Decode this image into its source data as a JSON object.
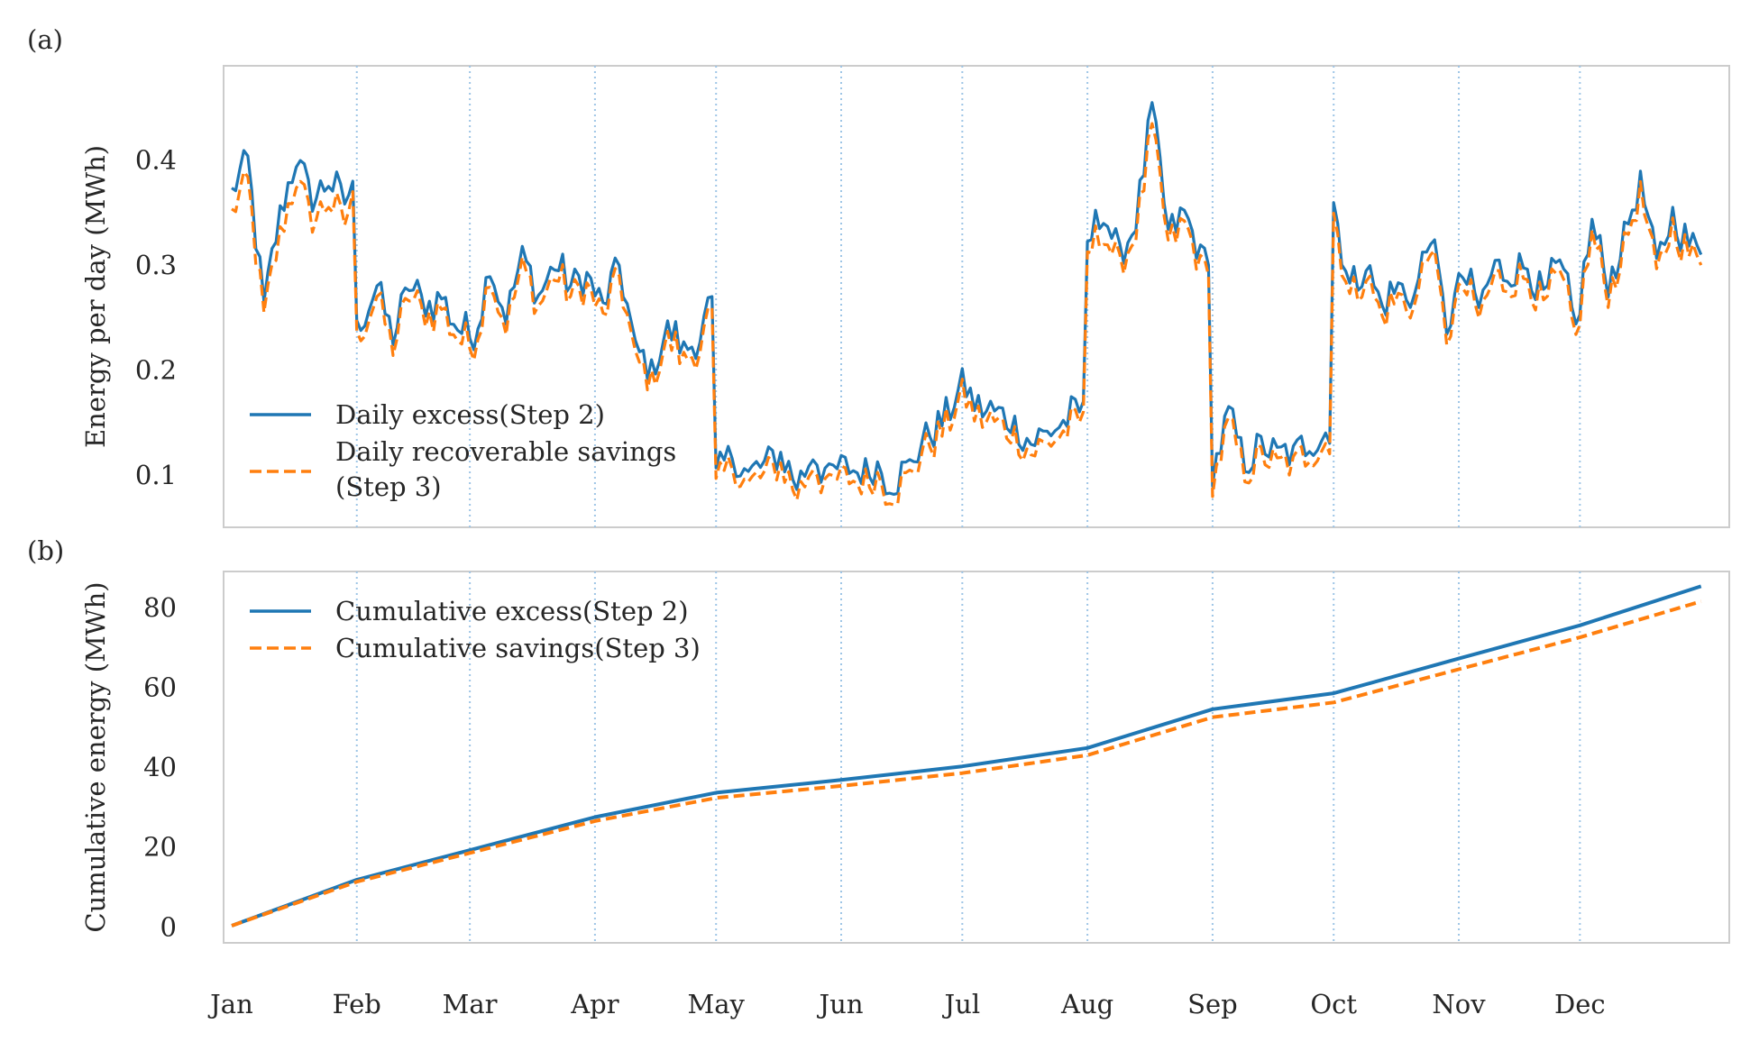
{
  "colors": {
    "excess": "#1f77b4",
    "savings": "#ff7f0e",
    "spine": "#cccccc",
    "month_line": "#9ec5e6"
  },
  "months": [
    "Jan",
    "Feb",
    "Mar",
    "Apr",
    "May",
    "Jun",
    "Jul",
    "Aug",
    "Sep",
    "Oct",
    "Nov",
    "Dec"
  ],
  "panel_a": {
    "label": "(a)",
    "ylabel": "Energy per day (MWh)",
    "yticks": [
      "0.1",
      "0.2",
      "0.3",
      "0.4"
    ],
    "legend": {
      "excess": "Daily excess(Step 2)",
      "savings_line1": "Daily recoverable savings",
      "savings_line2": "(Step 3)"
    }
  },
  "panel_b": {
    "label": "(b)",
    "ylabel": "Cumulative energy (MWh)",
    "yticks": [
      "0",
      "20",
      "40",
      "60",
      "80"
    ],
    "legend": {
      "excess": "Cumulative excess(Step 2)",
      "savings": "Cumulative savings(Step 3)"
    }
  },
  "chart_data": [
    {
      "type": "line",
      "title": "(a)",
      "xlabel": "",
      "ylabel": "Energy per day (MWh)",
      "xlim": [
        -2,
        371
      ],
      "ylim": [
        0.05,
        0.49
      ],
      "month_starts_day": [
        0,
        31,
        59,
        90,
        120,
        151,
        181,
        212,
        243,
        273,
        304,
        334
      ],
      "x": [
        0,
        4,
        8,
        12,
        16,
        20,
        24,
        28,
        30,
        31,
        36,
        40,
        44,
        48,
        52,
        56,
        60,
        64,
        68,
        72,
        76,
        80,
        84,
        88,
        92,
        96,
        100,
        104,
        108,
        112,
        116,
        119,
        120,
        124,
        128,
        132,
        136,
        140,
        144,
        148,
        152,
        156,
        160,
        164,
        168,
        172,
        176,
        180,
        182,
        186,
        190,
        194,
        198,
        202,
        206,
        210,
        211,
        212,
        216,
        220,
        224,
        228,
        232,
        236,
        240,
        242,
        243,
        247,
        251,
        255,
        259,
        263,
        267,
        271,
        272,
        273,
        277,
        281,
        285,
        289,
        293,
        297,
        301,
        305,
        309,
        313,
        317,
        321,
        325,
        329,
        333,
        337,
        341,
        345,
        349,
        353,
        357,
        361,
        364
      ],
      "series": [
        {
          "name": "Daily excess(Step 2)",
          "values": [
            0.37,
            0.4,
            0.26,
            0.35,
            0.4,
            0.36,
            0.38,
            0.36,
            0.38,
            0.24,
            0.28,
            0.23,
            0.28,
            0.26,
            0.27,
            0.24,
            0.23,
            0.3,
            0.25,
            0.31,
            0.27,
            0.3,
            0.28,
            0.29,
            0.26,
            0.3,
            0.22,
            0.2,
            0.24,
            0.22,
            0.23,
            0.27,
            0.1,
            0.12,
            0.1,
            0.11,
            0.12,
            0.09,
            0.12,
            0.1,
            0.11,
            0.1,
            0.11,
            0.09,
            0.11,
            0.14,
            0.15,
            0.18,
            0.18,
            0.16,
            0.16,
            0.15,
            0.13,
            0.14,
            0.15,
            0.16,
            0.17,
            0.32,
            0.35,
            0.31,
            0.34,
            0.45,
            0.33,
            0.35,
            0.31,
            0.3,
            0.1,
            0.16,
            0.11,
            0.13,
            0.12,
            0.12,
            0.13,
            0.14,
            0.13,
            0.36,
            0.28,
            0.3,
            0.26,
            0.28,
            0.27,
            0.33,
            0.24,
            0.29,
            0.26,
            0.3,
            0.29,
            0.3,
            0.27,
            0.3,
            0.24,
            0.34,
            0.28,
            0.33,
            0.38,
            0.3,
            0.35,
            0.32,
            0.31
          ]
        },
        {
          "name": "Daily recoverable savings (Step 3)",
          "values": [
            0.35,
            0.38,
            0.25,
            0.33,
            0.38,
            0.34,
            0.36,
            0.34,
            0.37,
            0.23,
            0.27,
            0.22,
            0.27,
            0.25,
            0.26,
            0.23,
            0.22,
            0.29,
            0.24,
            0.3,
            0.26,
            0.29,
            0.27,
            0.28,
            0.25,
            0.29,
            0.21,
            0.19,
            0.23,
            0.21,
            0.22,
            0.26,
            0.09,
            0.11,
            0.09,
            0.1,
            0.11,
            0.08,
            0.11,
            0.09,
            0.1,
            0.09,
            0.1,
            0.08,
            0.1,
            0.13,
            0.14,
            0.17,
            0.17,
            0.15,
            0.15,
            0.14,
            0.12,
            0.13,
            0.14,
            0.15,
            0.16,
            0.31,
            0.33,
            0.3,
            0.33,
            0.43,
            0.32,
            0.34,
            0.3,
            0.29,
            0.09,
            0.15,
            0.1,
            0.12,
            0.11,
            0.11,
            0.12,
            0.13,
            0.12,
            0.35,
            0.27,
            0.29,
            0.25,
            0.27,
            0.26,
            0.32,
            0.23,
            0.28,
            0.25,
            0.29,
            0.28,
            0.29,
            0.26,
            0.29,
            0.23,
            0.33,
            0.27,
            0.32,
            0.37,
            0.29,
            0.34,
            0.31,
            0.3
          ]
        }
      ]
    },
    {
      "type": "line",
      "title": "(b)",
      "xlabel": "",
      "ylabel": "Cumulative energy (MWh)",
      "xlim": [
        -18,
        376
      ],
      "ylim": [
        -4,
        89
      ],
      "x": [
        0,
        31,
        59,
        90,
        120,
        151,
        181,
        212,
        243,
        273,
        304,
        334,
        364
      ],
      "series": [
        {
          "name": "Cumulative excess(Step 2)",
          "values": [
            0.3,
            11.8,
            19.2,
            27.5,
            33.6,
            36.8,
            40.2,
            44.8,
            54.5,
            58.5,
            67.2,
            75.5,
            85.3
          ]
        },
        {
          "name": "Cumulative savings(Step 3)",
          "values": [
            0.3,
            11.3,
            18.5,
            26.5,
            32.3,
            35.3,
            38.5,
            43.0,
            52.5,
            56.2,
            64.5,
            72.5,
            81.5
          ]
        }
      ]
    }
  ]
}
